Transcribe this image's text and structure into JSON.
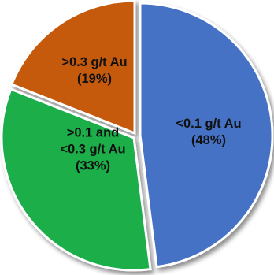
{
  "chart_data": {
    "type": "pie",
    "slices": [
      {
        "label": "<0.1 g/t Au",
        "value": 48,
        "value_label": "(48%)",
        "color": "#4472C4"
      },
      {
        "label": ">0.1 and <0.3 g/t Au",
        "value": 33,
        "value_label": "(33%)",
        "color": "#1FAE4A"
      },
      {
        "label": ">0.3 g/t Au",
        "value": 19,
        "value_label": "(19%)",
        "color": "#C55A11"
      }
    ],
    "start_angle_deg": 0,
    "direction": "clockwise",
    "legend": "none",
    "data_labels": "inside",
    "shadow": true
  }
}
